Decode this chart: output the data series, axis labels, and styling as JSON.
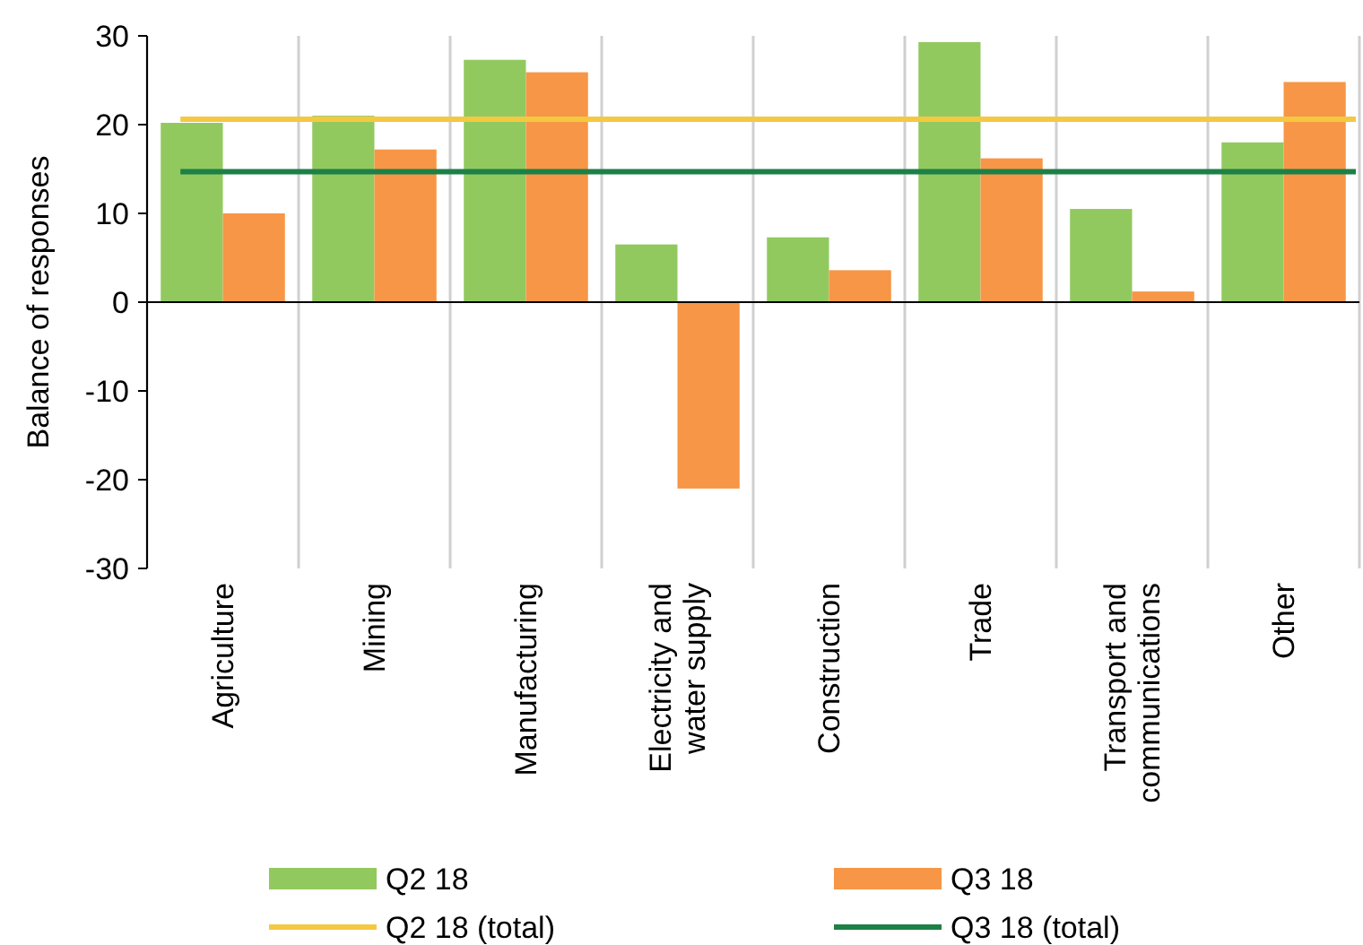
{
  "chart_data": {
    "type": "bar",
    "ylabel": "Balance of responses",
    "categories": [
      "Agriculture",
      "Mining",
      "Manufacturing",
      "Electricity and water supply",
      "Construction",
      "Trade",
      "Transport and communications",
      "Other"
    ],
    "series": [
      {
        "name": "Q2 18",
        "color": "#92c95f",
        "values": [
          20.2,
          21,
          27.3,
          6.5,
          7.3,
          29.3,
          10.5,
          18
        ]
      },
      {
        "name": "Q3 18",
        "color": "#f79646",
        "values": [
          10,
          17.2,
          25.9,
          -21,
          3.6,
          16.2,
          1.2,
          24.8
        ]
      }
    ],
    "ref_lines": [
      {
        "axis": "y",
        "value": 20.6,
        "label": "Q2 18 (total)",
        "color": "#f5c842"
      },
      {
        "axis": "y",
        "value": 14.7,
        "label": "Q3 18 (total)",
        "color": "#1d8046"
      }
    ],
    "ylim": [
      -30,
      30
    ],
    "yticks": [
      -30,
      -20,
      -10,
      0,
      10,
      20,
      30
    ],
    "grid": "x",
    "legend": "bottom"
  }
}
